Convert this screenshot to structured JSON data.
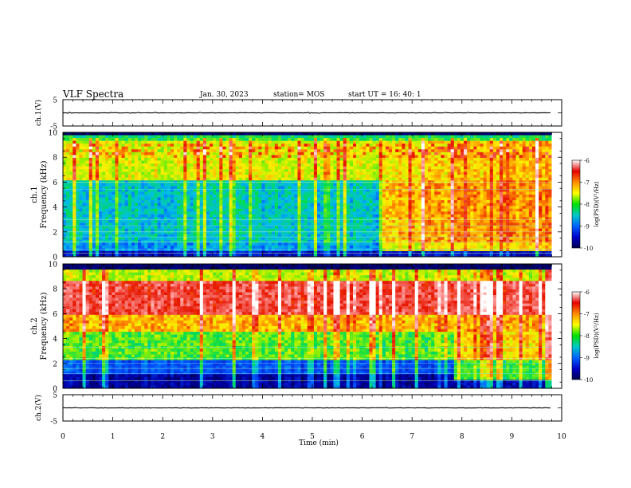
{
  "header": {
    "title": "VLF Spectra",
    "date": "Jan. 30, 2023",
    "station": "station= MOS",
    "start": "start  UT =   16: 40: 1"
  },
  "colorbar": {
    "ticks": [
      "-6",
      "-7",
      "-8",
      "-9",
      "-10"
    ],
    "label": "log(PSD)(V²/Hz)",
    "colors": [
      "#ffffff",
      "#e60000",
      "#ff8c00",
      "#ffff00",
      "#00e000",
      "#00c8c8",
      "#0064ff",
      "#0000c8",
      "#000050"
    ]
  },
  "chart_data": [
    {
      "type": "line",
      "name_key": "ch1_voltage",
      "ylabel": "ch.1(V)",
      "ylim": [
        -5,
        5
      ],
      "y_ticks": [
        "5",
        "0",
        "-5"
      ],
      "xlim": [
        0,
        10
      ],
      "level": 0
    },
    {
      "type": "heatmap",
      "name_key": "ch1_spectrogram",
      "ylabel_top": "ch.1",
      "ylabel": "Frequency (kHz)",
      "ylim": [
        0,
        10
      ],
      "y_ticks": [
        "0",
        "2",
        "4",
        "6",
        "8",
        "10"
      ],
      "xlim": [
        0,
        10
      ],
      "data_end_min": 9.8,
      "colorbar_range": [
        -10,
        -6
      ],
      "transition_min": 6.4
    },
    {
      "type": "heatmap",
      "name_key": "ch2_spectrogram",
      "ylabel_top": "ch.2",
      "ylabel": "Frequency (kHz)",
      "ylim": [
        0,
        10
      ],
      "y_ticks": [
        "0",
        "2",
        "4",
        "6",
        "8",
        "10"
      ],
      "xlim": [
        0,
        10
      ],
      "data_end_min": 9.8,
      "colorbar_range": [
        -10,
        -6
      ],
      "transition_min": 7.8
    },
    {
      "type": "line",
      "name_key": "ch2_voltage",
      "ylabel": "ch.2(V)",
      "ylim": [
        -5,
        5
      ],
      "y_ticks": [
        "5",
        "0",
        "-5"
      ],
      "xlim": [
        0,
        10
      ],
      "level": 0
    }
  ],
  "x_axis": {
    "label": "Time (min)",
    "ticks": [
      "0",
      "1",
      "2",
      "3",
      "4",
      "5",
      "6",
      "7",
      "8",
      "9",
      "10"
    ]
  }
}
